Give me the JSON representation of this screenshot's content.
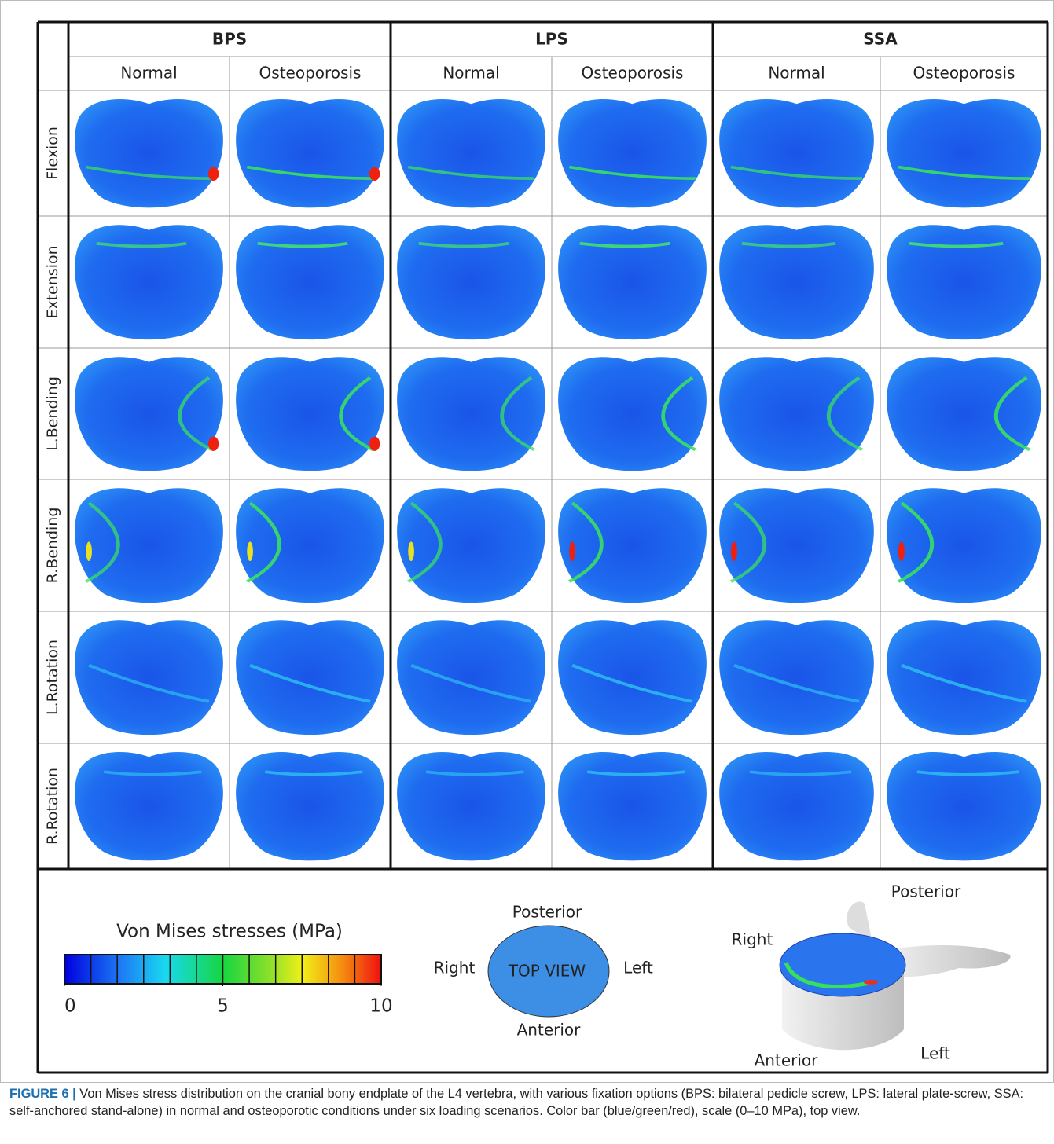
{
  "groups": [
    {
      "title": "BPS",
      "columns": [
        "Normal",
        "Osteoporosis"
      ]
    },
    {
      "title": "LPS",
      "columns": [
        "Normal",
        "Osteoporosis"
      ]
    },
    {
      "title": "SSA",
      "columns": [
        "Normal",
        "Osteoporosis"
      ]
    }
  ],
  "rows": [
    "Flexion",
    "Extension",
    "L.Bending",
    "R.Bending",
    "L.Rotation",
    "R.Rotation"
  ],
  "colorbar": {
    "title": "Von Mises stresses (MPa)",
    "range": [
      0,
      10
    ],
    "ticks": [
      0,
      5,
      10
    ]
  },
  "top_view": {
    "label": "TOP VIEW",
    "top": "Posterior",
    "bottom": "Anterior",
    "left": "Right",
    "right": "Left"
  },
  "model_view": {
    "posterior": "Posterior",
    "right": "Right",
    "anterior": "Anterior",
    "left": "Left"
  },
  "caption": {
    "label": "FIGURE 6 |",
    "text": "Von Mises stress distribution on the cranial bony endplate of the L4 vertebra, with various fixation options (BPS: bilateral pedicle screw, LPS: lateral plate-screw, SSA: self-anchored stand-alone) in normal and osteoporotic conditions under six loading scenarios. Color bar (blue/green/red), scale (0–10 MPa), top view."
  }
}
